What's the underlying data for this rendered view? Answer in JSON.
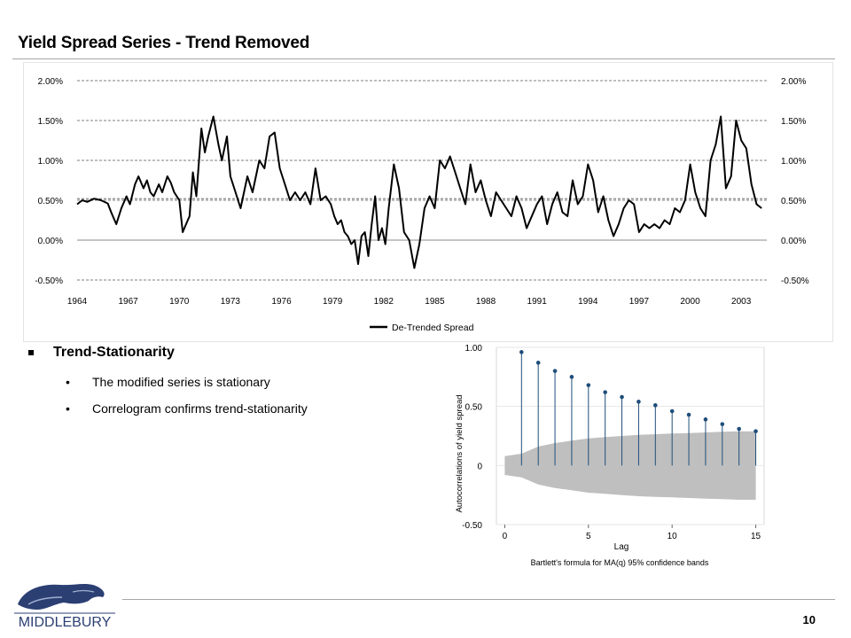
{
  "slide": {
    "title": "Yield Spread Series - Trend Removed",
    "page_number": "10"
  },
  "bullets": {
    "heading": "Trend-Stationarity",
    "items": [
      "The modified series is stationary",
      "Correlogram confirms trend-stationarity"
    ]
  },
  "logo": {
    "text": "MIDDLEBURY",
    "icon": "panther-icon"
  },
  "chart_data": [
    {
      "type": "line",
      "title": "",
      "xlabel": "",
      "ylabel": "",
      "xlim": [
        1964,
        2004.5
      ],
      "ylim": [
        -0.5,
        2.0
      ],
      "y_ticks": [
        "2.00%",
        "1.50%",
        "1.00%",
        "0.50%",
        "0.00%",
        "-0.50%"
      ],
      "y_tick_values": [
        2.0,
        1.5,
        1.0,
        0.5,
        0.0,
        -0.5
      ],
      "x_ticks": [
        "1964",
        "1967",
        "1970",
        "1973",
        "1976",
        "1979",
        "1982",
        "1985",
        "1988",
        "1991",
        "1994",
        "1997",
        "2000",
        "2003"
      ],
      "grid": "dashed horizontal",
      "legend_position": "bottom-center",
      "series": [
        {
          "name": "De-Trended Spread",
          "color": "#000000",
          "x": [
            1964.0,
            1964.3,
            1964.6,
            1965.0,
            1965.4,
            1965.8,
            1966.0,
            1966.3,
            1966.6,
            1966.9,
            1967.1,
            1967.4,
            1967.6,
            1967.9,
            1968.1,
            1968.3,
            1968.5,
            1968.8,
            1969.0,
            1969.3,
            1969.5,
            1969.7,
            1970.0,
            1970.2,
            1970.4,
            1970.6,
            1970.8,
            1971.0,
            1971.3,
            1971.5,
            1971.7,
            1972.0,
            1972.3,
            1972.5,
            1972.8,
            1973.0,
            1973.3,
            1973.6,
            1974.0,
            1974.3,
            1974.7,
            1975.0,
            1975.3,
            1975.6,
            1975.9,
            1976.2,
            1976.5,
            1976.8,
            1977.1,
            1977.4,
            1977.7,
            1978.0,
            1978.3,
            1978.6,
            1978.9,
            1979.1,
            1979.3,
            1979.5,
            1979.7,
            1979.9,
            1980.1,
            1980.3,
            1980.5,
            1980.7,
            1980.9,
            1981.1,
            1981.3,
            1981.5,
            1981.7,
            1981.9,
            1982.1,
            1982.3,
            1982.6,
            1982.9,
            1983.2,
            1983.5,
            1983.8,
            1984.1,
            1984.4,
            1984.7,
            1985.0,
            1985.3,
            1985.6,
            1985.9,
            1986.2,
            1986.5,
            1986.8,
            1987.1,
            1987.4,
            1987.7,
            1988.0,
            1988.3,
            1988.6,
            1988.9,
            1989.2,
            1989.5,
            1989.8,
            1990.1,
            1990.4,
            1990.7,
            1991.0,
            1991.3,
            1991.6,
            1991.9,
            1992.2,
            1992.5,
            1992.8,
            1993.1,
            1993.4,
            1993.7,
            1994.0,
            1994.3,
            1994.6,
            1994.9,
            1995.2,
            1995.5,
            1995.8,
            1996.1,
            1996.4,
            1996.7,
            1997.0,
            1997.3,
            1997.6,
            1997.9,
            1998.2,
            1998.5,
            1998.8,
            1999.1,
            1999.4,
            1999.7,
            2000.0,
            2000.3,
            2000.6,
            2000.9,
            2001.2,
            2001.5,
            2001.8,
            2002.1,
            2002.4,
            2002.7,
            2003.0,
            2003.3,
            2003.6,
            2003.9,
            2004.2
          ],
          "values": [
            0.45,
            0.5,
            0.48,
            0.52,
            0.5,
            0.46,
            0.35,
            0.2,
            0.4,
            0.55,
            0.45,
            0.7,
            0.8,
            0.65,
            0.75,
            0.6,
            0.55,
            0.7,
            0.6,
            0.8,
            0.72,
            0.6,
            0.5,
            0.1,
            0.2,
            0.3,
            0.85,
            0.55,
            1.4,
            1.1,
            1.3,
            1.55,
            1.2,
            1.0,
            1.3,
            0.8,
            0.6,
            0.4,
            0.8,
            0.6,
            1.0,
            0.9,
            1.3,
            1.35,
            0.9,
            0.7,
            0.5,
            0.6,
            0.5,
            0.6,
            0.45,
            0.9,
            0.5,
            0.55,
            0.45,
            0.3,
            0.2,
            0.25,
            0.1,
            0.05,
            -0.05,
            0.0,
            -0.3,
            0.05,
            0.1,
            -0.2,
            0.2,
            0.55,
            0.0,
            0.15,
            -0.05,
            0.4,
            0.95,
            0.65,
            0.1,
            0.0,
            -0.35,
            -0.05,
            0.4,
            0.55,
            0.4,
            1.0,
            0.9,
            1.05,
            0.85,
            0.65,
            0.45,
            0.95,
            0.6,
            0.75,
            0.5,
            0.3,
            0.6,
            0.5,
            0.4,
            0.3,
            0.55,
            0.4,
            0.15,
            0.3,
            0.45,
            0.55,
            0.2,
            0.45,
            0.6,
            0.35,
            0.3,
            0.75,
            0.45,
            0.55,
            0.95,
            0.75,
            0.35,
            0.55,
            0.25,
            0.05,
            0.2,
            0.4,
            0.5,
            0.45,
            0.1,
            0.2,
            0.15,
            0.2,
            0.15,
            0.25,
            0.2,
            0.4,
            0.35,
            0.5,
            0.95,
            0.6,
            0.4,
            0.3,
            1.0,
            1.2,
            1.55,
            0.65,
            0.8,
            1.5,
            1.25,
            1.15,
            0.7,
            0.45,
            0.4
          ]
        },
        {
          "name": "",
          "values_constant": 0.52,
          "note_hidden": false
        }
      ]
    },
    {
      "type": "scatter",
      "title": "",
      "xlabel": "Lag",
      "ylabel": "Autocorrelations of yield spread",
      "caption": "Bartlett's formula for MA(q) 95% confidence bands",
      "xlim": [
        0,
        15
      ],
      "ylim": [
        -0.5,
        1.0
      ],
      "x_ticks": [
        "0",
        "5",
        "10",
        "15"
      ],
      "y_ticks": [
        "1.00",
        "0.50",
        "0",
        "-0.50"
      ],
      "x": [
        1,
        2,
        3,
        4,
        5,
        6,
        7,
        8,
        9,
        10,
        11,
        12,
        13,
        14,
        15
      ],
      "values": [
        0.96,
        0.87,
        0.8,
        0.75,
        0.68,
        0.62,
        0.58,
        0.54,
        0.51,
        0.46,
        0.43,
        0.39,
        0.35,
        0.31,
        0.29
      ],
      "band_upper": [
        0.1,
        0.16,
        0.19,
        0.21,
        0.23,
        0.24,
        0.25,
        0.26,
        0.265,
        0.27,
        0.275,
        0.28,
        0.285,
        0.29,
        0.29
      ],
      "band_lower": [
        -0.1,
        -0.16,
        -0.19,
        -0.21,
        -0.23,
        -0.24,
        -0.25,
        -0.26,
        -0.265,
        -0.27,
        -0.275,
        -0.28,
        -0.285,
        -0.29,
        -0.29
      ],
      "point_color": "#1f4e79",
      "band_color": "#bfbfbf"
    }
  ]
}
